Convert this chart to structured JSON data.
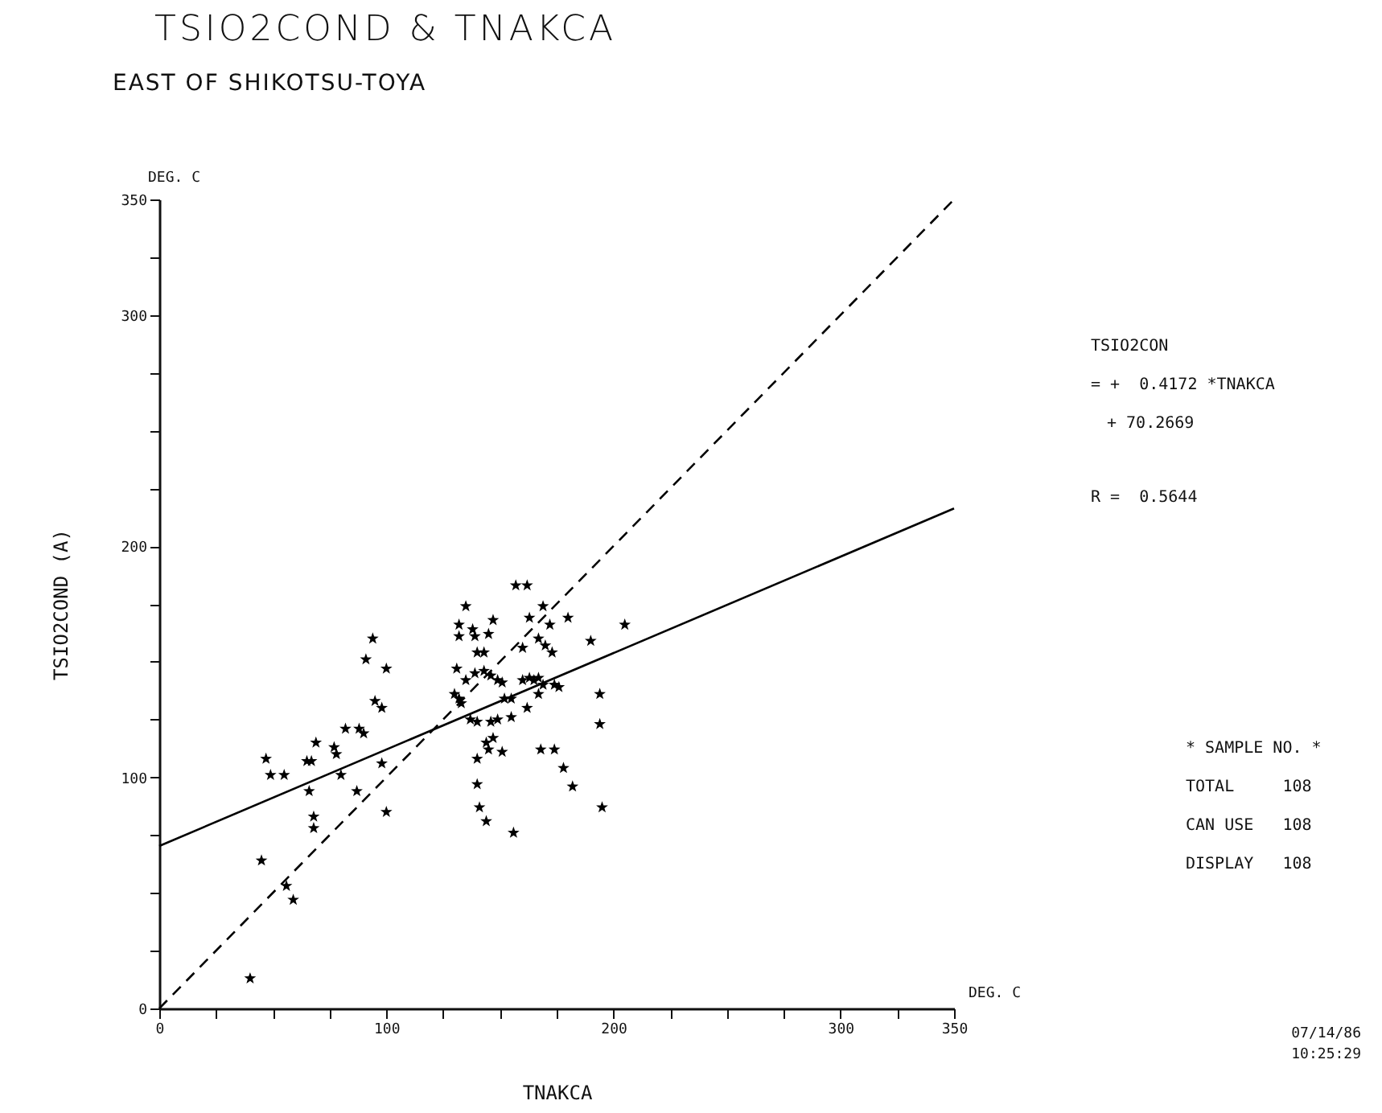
{
  "chart_data": {
    "type": "scatter",
    "title": "TSIO2COND & TNAKCA",
    "subtitle": "EAST OF SHIKOTSU-TOYA",
    "xlabel": "TNAKCA",
    "ylabel": "TSIO2COND    (A)",
    "xlim": [
      0,
      350
    ],
    "ylim": [
      0,
      350
    ],
    "xticks": [
      0,
      {
        "value": 25,
        "label": null
      },
      {
        "value": 50,
        "label": null
      },
      {
        "value": 75,
        "label": null
      },
      100,
      {
        "value": 125,
        "label": null
      },
      {
        "value": 150,
        "label": null
      },
      {
        "value": 175,
        "label": null
      },
      200,
      {
        "value": 225,
        "label": null
      },
      {
        "value": 250,
        "label": null
      },
      {
        "value": 275,
        "label": null
      },
      300,
      {
        "value": 325,
        "label": null
      },
      350
    ],
    "yticks": [
      0,
      {
        "value": 25,
        "label": null
      },
      {
        "value": 50,
        "label": null
      },
      {
        "value": 75,
        "label": null
      },
      100,
      {
        "value": 125,
        "label": null
      },
      {
        "value": 150,
        "label": null
      },
      {
        "value": 175,
        "label": null
      },
      200,
      {
        "value": 225,
        "label": null
      },
      {
        "value": 250,
        "label": null
      },
      {
        "value": 275,
        "label": null
      },
      300,
      {
        "value": 325,
        "label": null
      },
      350
    ],
    "marker": "star",
    "series": [
      {
        "color": "#000000",
        "x": [
          40,
          45,
          47,
          49,
          55,
          56,
          59,
          65,
          67,
          66,
          68,
          68,
          69,
          77,
          78,
          80,
          82,
          87,
          88,
          90,
          91,
          94,
          95,
          98,
          98,
          100,
          100,
          130,
          132,
          133,
          132,
          132,
          135,
          138,
          139,
          140,
          143,
          147,
          145,
          131,
          135,
          137,
          139,
          143,
          146,
          149,
          151,
          140,
          146,
          149,
          155,
          144,
          147,
          151,
          145,
          140,
          140,
          141,
          144,
          156,
          152,
          155,
          157,
          162,
          163,
          169,
          160,
          167,
          170,
          173,
          172,
          180,
          162,
          160,
          163,
          165,
          167,
          169,
          167,
          174,
          176,
          168,
          174,
          178,
          182,
          190,
          194,
          194,
          195,
          205
        ],
        "values": [
          13,
          64,
          108,
          101,
          101,
          53,
          47,
          107,
          107,
          94,
          83,
          78,
          115,
          113,
          110,
          101,
          121,
          94,
          121,
          119,
          151,
          160,
          133,
          130,
          106,
          147,
          85,
          136,
          134,
          132,
          166,
          161,
          174,
          164,
          161,
          154,
          154,
          168,
          162,
          147,
          142,
          125,
          145,
          146,
          144,
          142,
          141,
          124,
          124,
          125,
          126,
          115,
          117,
          111,
          112,
          108,
          97,
          87,
          81,
          76,
          134,
          134,
          183,
          183,
          169,
          174,
          156,
          160,
          157,
          154,
          166,
          169,
          130,
          142,
          143,
          142,
          143,
          140,
          136,
          140,
          139,
          112,
          112,
          104,
          96,
          159,
          136,
          123,
          87,
          166
        ]
      },
      {
        "type": "line",
        "color": "#000000",
        "marker": "none",
        "line_style": "solid",
        "x": [
          0,
          350
        ],
        "values": [
          70.3,
          216.3
        ]
      },
      {
        "type": "line",
        "color": "#000000",
        "marker": "none",
        "line_style": "dashed",
        "x": [
          0,
          350
        ],
        "values": [
          0,
          350
        ]
      }
    ],
    "annotations": [
      "TSIO2CON",
      "= +  0.4172 *TNAKCA",
      "+ 70.2669",
      "R =  0.5644",
      "* SAMPLE NO. *",
      "TOTAL     108",
      "CAN USE   108",
      "DISPLAY   108",
      "07/14/86",
      "10:25:29",
      "DEG. C",
      "DEG. C"
    ]
  }
}
